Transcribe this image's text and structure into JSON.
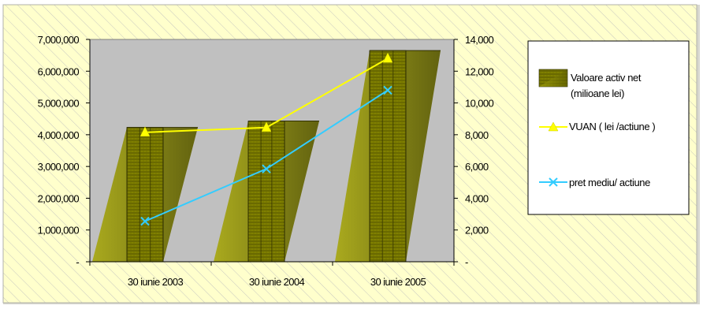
{
  "chart_data": {
    "type": "bar",
    "categories": [
      "30 iunie 2003",
      "30 iunie 2004",
      "30 iunie 2005"
    ],
    "y_left": {
      "ylim": [
        0,
        7000000
      ],
      "ticks": [
        0,
        1000000,
        2000000,
        3000000,
        4000000,
        5000000,
        6000000,
        7000000
      ],
      "tick_labels": [
        "-",
        "1,000,000",
        "2,000,000",
        "3,000,000",
        "4,000,000",
        "5,000,000",
        "6,000,000",
        "7,000,000"
      ]
    },
    "y_right": {
      "ylim": [
        0,
        14000
      ],
      "ticks": [
        0,
        2000,
        4000,
        6000,
        8000,
        10000,
        12000,
        14000
      ],
      "tick_labels": [
        "-",
        "2,000",
        "4,000",
        "6,000",
        "8,000",
        "10,000",
        "12,000",
        "14,000"
      ]
    },
    "series": [
      {
        "name": "Valoare activ net (milioane  lei)",
        "name_lines": [
          "Valoare activ net",
          "(milioane  lei)"
        ],
        "type": "bar",
        "axis": "left",
        "values": [
          4230000,
          4430000,
          6650000
        ],
        "color": "#808000"
      },
      {
        "name": "VUAN ( lei /actiune )",
        "type": "line",
        "axis": "right",
        "marker": "triangle",
        "values": [
          8150,
          8450,
          12800
        ],
        "color": "#ffff00"
      },
      {
        "name": "pret mediu/ actiune",
        "type": "line",
        "axis": "right",
        "marker": "x",
        "values": [
          2550,
          5850,
          10800
        ],
        "color": "#33ccff"
      }
    ],
    "legend_position": "right",
    "grid": false,
    "plot_background": "#c0c0c0",
    "chart_background": "#ffffcc"
  }
}
